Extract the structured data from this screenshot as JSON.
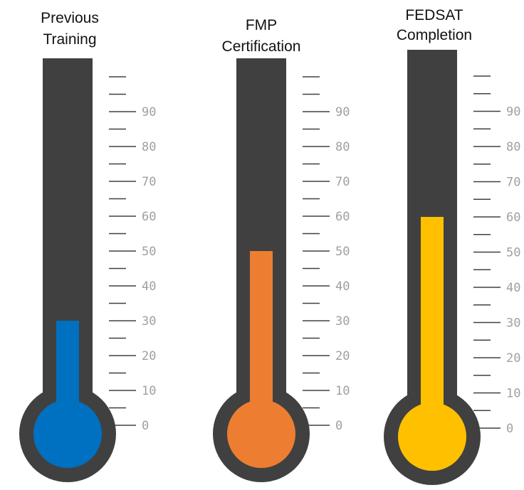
{
  "chart_data": {
    "type": "thermometer",
    "ylim": [
      0,
      100
    ],
    "tick_labels": [
      "0",
      "10",
      "20",
      "30",
      "40",
      "50",
      "60",
      "70",
      "80",
      "90"
    ],
    "thermometers": [
      {
        "title_lines": [
          "Previous",
          "Training"
        ],
        "value": 30,
        "color": "#0070c0"
      },
      {
        "title_lines": [
          "FMP",
          "Certification"
        ],
        "value": 50,
        "color": "#ed7d31"
      },
      {
        "title_lines": [
          "FEDSAT",
          "Completion"
        ],
        "value": 60,
        "color": "#ffc000"
      }
    ],
    "tube_color": "#404040",
    "tick_color": "#404040"
  }
}
